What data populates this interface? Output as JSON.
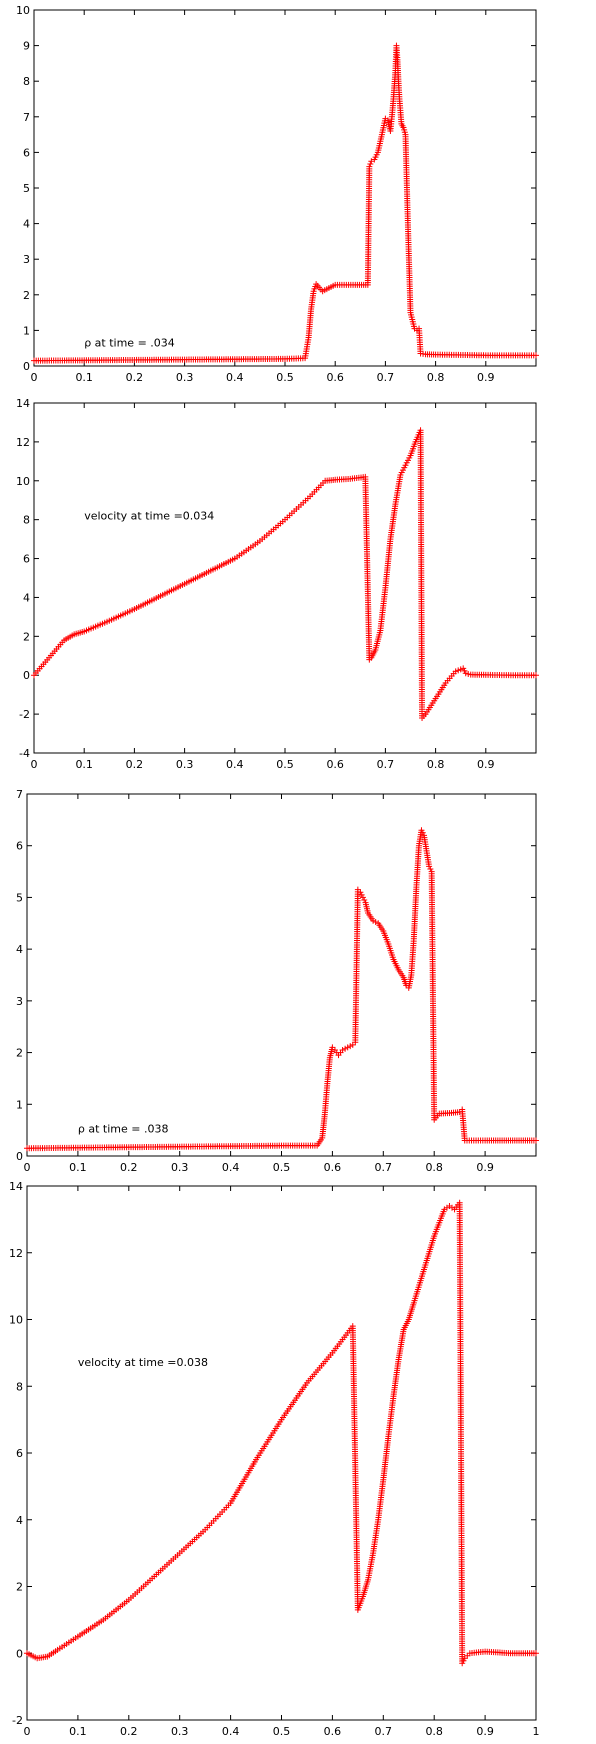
{
  "chart_data": [
    {
      "type": "scatter",
      "title": "",
      "annotation": "ρ at time = .034",
      "xlim": [
        0,
        1
      ],
      "ylim": [
        0,
        10
      ],
      "xticks": [
        0,
        0.1,
        0.2,
        0.3,
        0.4,
        0.5,
        0.6,
        0.7,
        0.8,
        0.9
      ],
      "xtick_labels": [
        "0",
        "0.1",
        "0.2",
        "0.3",
        "0.4",
        "0.5",
        "0.6",
        "0.7",
        "0.8",
        "0.9"
      ],
      "yticks": [
        0,
        1,
        2,
        3,
        4,
        5,
        6,
        7,
        8,
        9,
        10
      ],
      "ytick_labels": [
        "0",
        "1",
        "2",
        "3",
        "4",
        "5",
        "6",
        "7",
        "8",
        "9",
        "10"
      ],
      "marker": "+",
      "color": "#ff0000",
      "series": [
        {
          "x": [
            0,
            0.1,
            0.2,
            0.3,
            0.4,
            0.5,
            0.54,
            0.547,
            0.552,
            0.557,
            0.562,
            0.568,
            0.575,
            0.6,
            0.64,
            0.665,
            0.668,
            0.672,
            0.678,
            0.685,
            0.693,
            0.7,
            0.705,
            0.71,
            0.713,
            0.716,
            0.72,
            0.722,
            0.724,
            0.726,
            0.728,
            0.732,
            0.736,
            0.74,
            0.745,
            0.75,
            0.758,
            0.763,
            0.767,
            0.77,
            0.78,
            0.8,
            0.85,
            0.9,
            0.95,
            1.0
          ],
          "y": [
            0.15,
            0.16,
            0.17,
            0.18,
            0.19,
            0.2,
            0.22,
            0.8,
            1.6,
            2.1,
            2.3,
            2.2,
            2.1,
            2.28,
            2.28,
            2.28,
            5.6,
            5.75,
            5.8,
            6.0,
            6.5,
            6.95,
            6.9,
            6.6,
            7.0,
            7.5,
            8.3,
            9.0,
            8.6,
            8.0,
            7.5,
            6.8,
            6.7,
            6.5,
            3.9,
            1.5,
            1.05,
            1.0,
            1.05,
            0.35,
            0.33,
            0.32,
            0.31,
            0.3,
            0.3,
            0.3
          ]
        }
      ]
    },
    {
      "type": "scatter",
      "title": "",
      "annotation": "velocity at time =0.034",
      "xlim": [
        0,
        1
      ],
      "ylim": [
        -4,
        14
      ],
      "xticks": [
        0,
        0.1,
        0.2,
        0.3,
        0.4,
        0.5,
        0.6,
        0.7,
        0.8,
        0.9
      ],
      "xtick_labels": [
        "0",
        "0.1",
        "0.2",
        "0.3",
        "0.4",
        "0.5",
        "0.6",
        "0.7",
        "0.8",
        "0.9"
      ],
      "yticks": [
        -4,
        -2,
        0,
        2,
        4,
        6,
        8,
        10,
        12,
        14
      ],
      "ytick_labels": [
        "-4",
        "-2",
        "0",
        "2",
        "4",
        "6",
        "8",
        "10",
        "12",
        "14"
      ],
      "marker": "+",
      "color": "#ff0000",
      "series": [
        {
          "x": [
            0,
            0.03,
            0.06,
            0.08,
            0.1,
            0.15,
            0.2,
            0.3,
            0.4,
            0.45,
            0.5,
            0.55,
            0.58,
            0.6,
            0.63,
            0.66,
            0.668,
            0.672,
            0.68,
            0.69,
            0.7,
            0.71,
            0.72,
            0.73,
            0.74,
            0.75,
            0.76,
            0.77,
            0.773,
            0.78,
            0.8,
            0.82,
            0.84,
            0.855,
            0.86,
            0.87,
            0.9,
            0.95,
            1.0
          ],
          "y": [
            0,
            0.9,
            1.8,
            2.1,
            2.25,
            2.8,
            3.4,
            4.7,
            6.0,
            6.9,
            8.0,
            9.2,
            10.0,
            10.05,
            10.1,
            10.2,
            0.8,
            0.9,
            1.3,
            2.3,
            4.5,
            7.0,
            8.8,
            10.3,
            10.8,
            11.3,
            12.0,
            12.6,
            -2.2,
            -2.0,
            -1.2,
            -0.4,
            0.2,
            0.35,
            0.1,
            0.03,
            0.02,
            0.0,
            0.0
          ]
        }
      ]
    },
    {
      "type": "scatter",
      "title": "",
      "annotation": "ρ at time = .038",
      "xlim": [
        0,
        1
      ],
      "ylim": [
        0,
        7
      ],
      "xticks": [
        0,
        0.1,
        0.2,
        0.3,
        0.4,
        0.5,
        0.6,
        0.7,
        0.8,
        0.9
      ],
      "xtick_labels": [
        "0",
        "0.1",
        "0.2",
        "0.3",
        "0.4",
        "0.5",
        "0.6",
        "0.7",
        "0.8",
        "0.9"
      ],
      "yticks": [
        0,
        1,
        2,
        3,
        4,
        5,
        6,
        7
      ],
      "ytick_labels": [
        "0",
        "1",
        "2",
        "3",
        "4",
        "5",
        "6",
        "7"
      ],
      "marker": "+",
      "color": "#ff0000",
      "series": [
        {
          "x": [
            0,
            0.1,
            0.2,
            0.3,
            0.4,
            0.5,
            0.57,
            0.58,
            0.585,
            0.59,
            0.595,
            0.6,
            0.605,
            0.612,
            0.62,
            0.63,
            0.64,
            0.645,
            0.65,
            0.655,
            0.66,
            0.665,
            0.67,
            0.68,
            0.69,
            0.7,
            0.71,
            0.72,
            0.73,
            0.74,
            0.745,
            0.75,
            0.755,
            0.76,
            0.765,
            0.77,
            0.775,
            0.78,
            0.785,
            0.79,
            0.795,
            0.8,
            0.81,
            0.83,
            0.85,
            0.855,
            0.86,
            0.9,
            0.95,
            1.0
          ],
          "y": [
            0.15,
            0.16,
            0.17,
            0.18,
            0.19,
            0.2,
            0.2,
            0.35,
            0.8,
            1.4,
            1.9,
            2.1,
            2.05,
            1.95,
            2.05,
            2.1,
            2.15,
            2.2,
            5.15,
            5.1,
            5.0,
            4.9,
            4.7,
            4.55,
            4.5,
            4.35,
            4.1,
            3.8,
            3.6,
            3.45,
            3.3,
            3.25,
            3.5,
            4.2,
            5.2,
            6.0,
            6.3,
            6.2,
            5.9,
            5.6,
            5.5,
            0.7,
            0.82,
            0.83,
            0.85,
            0.9,
            0.3,
            0.3,
            0.3,
            0.3
          ]
        }
      ]
    },
    {
      "type": "scatter",
      "title": "",
      "annotation": "velocity at time =0.038",
      "xlim": [
        0,
        1
      ],
      "ylim": [
        -2,
        14
      ],
      "xticks": [
        0,
        0.1,
        0.2,
        0.3,
        0.4,
        0.5,
        0.6,
        0.7,
        0.8,
        0.9,
        1
      ],
      "xtick_labels": [
        "0",
        "0.1",
        "0.2",
        "0.3",
        "0.4",
        "0.5",
        "0.6",
        "0.7",
        "0.8",
        "0.9",
        "1"
      ],
      "yticks": [
        -2,
        0,
        2,
        4,
        6,
        8,
        10,
        12,
        14
      ],
      "ytick_labels": [
        "-2",
        "0",
        "2",
        "4",
        "6",
        "8",
        "10",
        "12",
        "14"
      ],
      "marker": "+",
      "color": "#ff0000",
      "series": [
        {
          "x": [
            0,
            0.02,
            0.04,
            0.06,
            0.1,
            0.15,
            0.2,
            0.25,
            0.3,
            0.35,
            0.4,
            0.45,
            0.5,
            0.55,
            0.6,
            0.64,
            0.65,
            0.66,
            0.67,
            0.68,
            0.69,
            0.7,
            0.71,
            0.72,
            0.73,
            0.74,
            0.75,
            0.76,
            0.78,
            0.8,
            0.82,
            0.83,
            0.84,
            0.85,
            0.855,
            0.86,
            0.87,
            0.9,
            0.95,
            1.0
          ],
          "y": [
            0.0,
            -0.15,
            -0.1,
            0.1,
            0.5,
            1.0,
            1.6,
            2.3,
            3.0,
            3.7,
            4.5,
            5.8,
            7.0,
            8.1,
            9.0,
            9.8,
            1.3,
            1.7,
            2.2,
            3.0,
            4.0,
            5.2,
            6.5,
            7.7,
            8.8,
            9.7,
            10.0,
            10.5,
            11.5,
            12.5,
            13.3,
            13.4,
            13.3,
            13.5,
            -0.3,
            -0.15,
            0.0,
            0.05,
            0.0,
            0.0
          ]
        }
      ]
    }
  ]
}
